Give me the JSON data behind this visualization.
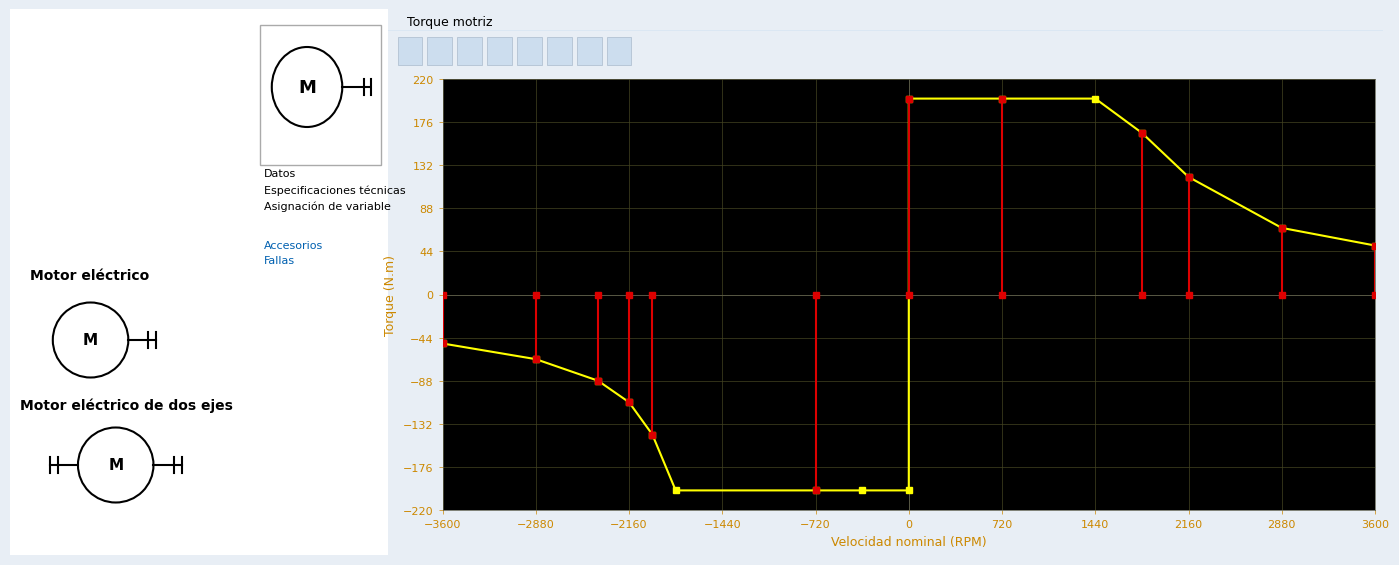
{
  "tab_title": "Torque motriz",
  "xlabel": "Velocidad nominal (RPM)",
  "ylabel": "Torque (N.m)",
  "xlim": [
    -3600,
    3600
  ],
  "ylim": [
    -220,
    220
  ],
  "xticks": [
    -3600,
    -2880,
    -2160,
    -1440,
    -720,
    0,
    720,
    1440,
    2160,
    2880,
    3600
  ],
  "yticks": [
    -220,
    -176,
    -132,
    -88,
    -44,
    0,
    44,
    88,
    132,
    176,
    220
  ],
  "bg_color": "#000000",
  "tick_color": "#cc8800",
  "grid_color": "#444422",
  "yellow_color": "#ffff00",
  "red_color": "#dd0000",
  "yellow_x": [
    -3600,
    -2880,
    -2400,
    -2160,
    -1980,
    -1800,
    -720,
    -360,
    0,
    0,
    720,
    1440,
    1800,
    2160,
    2880,
    3600
  ],
  "yellow_y": [
    -50,
    -66,
    -88,
    -110,
    -143,
    -200,
    -200,
    -200,
    -200,
    200,
    200,
    200,
    165,
    120,
    68,
    50
  ],
  "red_segments": [
    {
      "x": [
        -3600,
        -3600
      ],
      "y": [
        0,
        -50
      ]
    },
    {
      "x": [
        -2880,
        -2880
      ],
      "y": [
        0,
        -66
      ]
    },
    {
      "x": [
        -2400,
        -2400
      ],
      "y": [
        0,
        -88
      ]
    },
    {
      "x": [
        -2160,
        -2160
      ],
      "y": [
        0,
        -110
      ]
    },
    {
      "x": [
        -1980,
        -1980
      ],
      "y": [
        0,
        -143
      ]
    },
    {
      "x": [
        -720,
        -720
      ],
      "y": [
        0,
        -200
      ]
    },
    {
      "x": [
        0,
        0
      ],
      "y": [
        0,
        200
      ]
    },
    {
      "x": [
        720,
        720
      ],
      "y": [
        0,
        200
      ]
    },
    {
      "x": [
        1800,
        1800
      ],
      "y": [
        0,
        165
      ]
    },
    {
      "x": [
        2160,
        2160
      ],
      "y": [
        0,
        120
      ]
    },
    {
      "x": [
        2880,
        2880
      ],
      "y": [
        0,
        68
      ]
    },
    {
      "x": [
        3600,
        3600
      ],
      "y": [
        0,
        50
      ]
    }
  ],
  "motor_label1": "Motor eléctrico",
  "motor_label2": "Motor eléctrico de dos ejes",
  "sidebar_links": [
    "Datos",
    "Especificaciones técnicas",
    "Asignación de variable",
    "",
    "Accesorios",
    "Fallas"
  ],
  "toolbar_bg": "#dce8f5",
  "tab_bg": "#dce8f5",
  "left_bg": "#ffffff"
}
